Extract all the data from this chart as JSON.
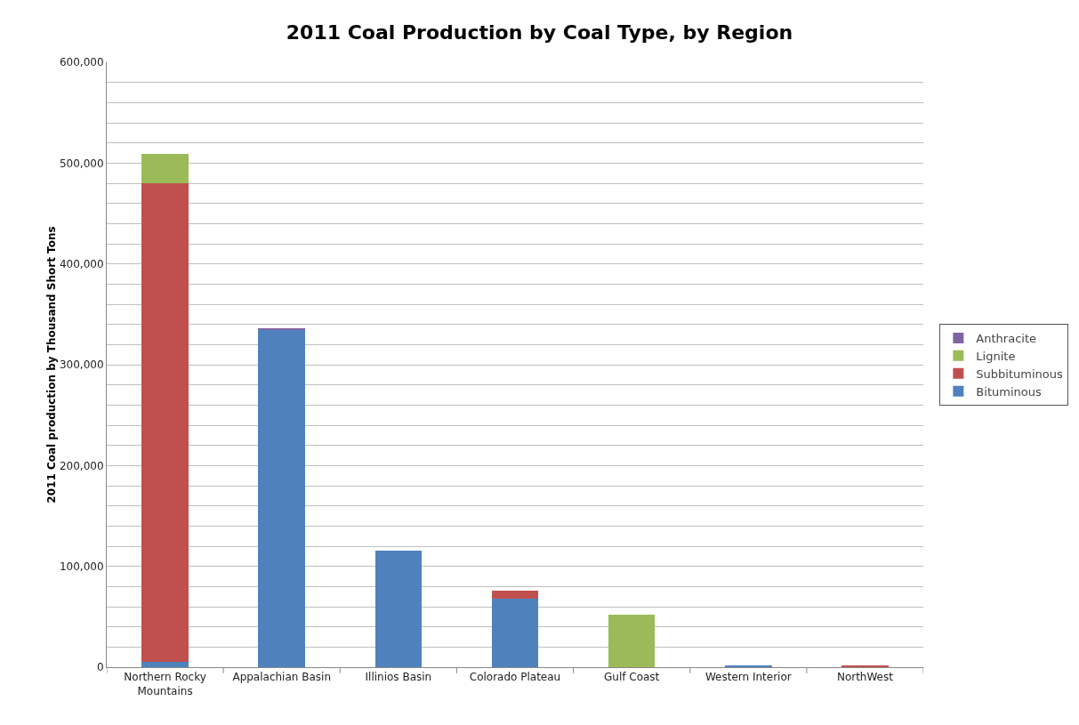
{
  "chart_data": {
    "type": "bar",
    "title": "2011 Coal Production by Coal Type, by Region",
    "ylabel": "2011 Coal production by Thousand Short Tons",
    "categories": [
      "Northern Rocky Mountains",
      "Appalachian Basin",
      "Illinios Basin",
      "Colorado Plateau",
      "Gulf Coast",
      "Western Interior",
      "NorthWest"
    ],
    "stacked": true,
    "series": [
      {
        "name": "Bituminous",
        "color": "#4f81bd",
        "values": [
          5000,
          334000,
          116000,
          68000,
          0,
          2000,
          0
        ]
      },
      {
        "name": "Subbituminous",
        "color": "#c0504d",
        "values": [
          475000,
          0,
          0,
          8000,
          0,
          0,
          2000
        ]
      },
      {
        "name": "Lignite",
        "color": "#9bbb59",
        "values": [
          29000,
          0,
          0,
          0,
          52000,
          0,
          0
        ]
      },
      {
        "name": "Anthracite",
        "color": "#8064a2",
        "values": [
          0,
          2000,
          0,
          0,
          0,
          0,
          0
        ]
      }
    ],
    "ylim": [
      0,
      600000
    ],
    "yticks": [
      {
        "value": 0,
        "label": "0"
      },
      {
        "value": 20000,
        "label": null
      },
      {
        "value": 40000,
        "label": null
      },
      {
        "value": 60000,
        "label": null
      },
      {
        "value": 80000,
        "label": null
      },
      {
        "value": 100000,
        "label": "100,000"
      },
      {
        "value": 120000,
        "label": null
      },
      {
        "value": 140000,
        "label": null
      },
      {
        "value": 160000,
        "label": null
      },
      {
        "value": 180000,
        "label": null
      },
      {
        "value": 200000,
        "label": "200,000"
      },
      {
        "value": 220000,
        "label": null
      },
      {
        "value": 240000,
        "label": null
      },
      {
        "value": 260000,
        "label": null
      },
      {
        "value": 280000,
        "label": null
      },
      {
        "value": 300000,
        "label": "300,000"
      },
      {
        "value": 320000,
        "label": null
      },
      {
        "value": 340000,
        "label": null
      },
      {
        "value": 360000,
        "label": null
      },
      {
        "value": 380000,
        "label": null
      },
      {
        "value": 400000,
        "label": "400,000"
      },
      {
        "value": 420000,
        "label": null
      },
      {
        "value": 440000,
        "label": null
      },
      {
        "value": 460000,
        "label": null
      },
      {
        "value": 480000,
        "label": null
      },
      {
        "value": 500000,
        "label": "500,000"
      },
      {
        "value": 520000,
        "label": null
      },
      {
        "value": 540000,
        "label": null
      },
      {
        "value": 560000,
        "label": null
      },
      {
        "value": 580000,
        "label": null
      },
      {
        "value": 600000,
        "label": "600,000"
      }
    ],
    "grid": "y",
    "legend": "right"
  }
}
